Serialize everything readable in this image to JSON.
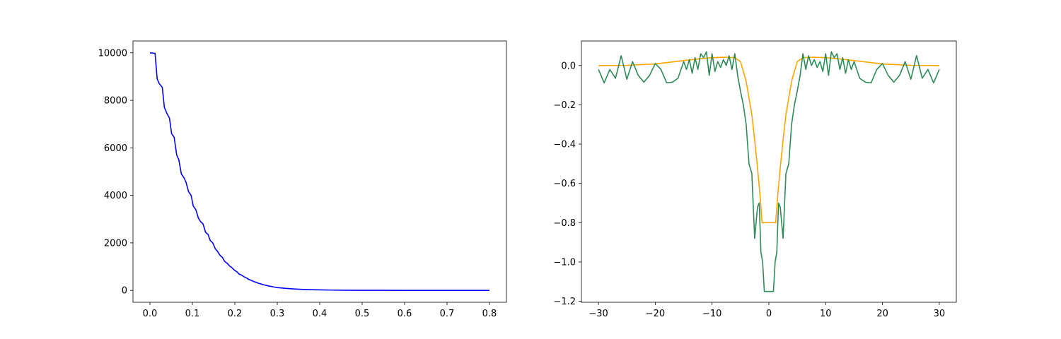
{
  "chart_data": [
    {
      "type": "line",
      "title": "",
      "xlabel": "",
      "ylabel": "",
      "xlim": [
        -0.04,
        0.84
      ],
      "ylim": [
        -500,
        10500
      ],
      "grid": false,
      "legend": "none",
      "x_ticks": [
        0.0,
        0.1,
        0.2,
        0.3,
        0.4,
        0.5,
        0.6,
        0.7,
        0.8
      ],
      "x_tick_labels": [
        "0.0",
        "0.1",
        "0.2",
        "0.3",
        "0.4",
        "0.5",
        "0.6",
        "0.7",
        "0.8"
      ],
      "y_ticks": [
        0,
        2000,
        4000,
        6000,
        8000,
        10000
      ],
      "y_tick_labels": [
        "0",
        "2000",
        "4000",
        "6000",
        "8000",
        "10000"
      ],
      "series": [
        {
          "color": "#0000ff",
          "x": [
            0.0,
            0.012,
            0.017,
            0.022,
            0.029,
            0.034,
            0.04,
            0.046,
            0.051,
            0.057,
            0.063,
            0.068,
            0.074,
            0.08,
            0.085,
            0.091,
            0.097,
            0.102,
            0.108,
            0.114,
            0.119,
            0.125,
            0.131,
            0.137,
            0.142,
            0.148,
            0.154,
            0.159,
            0.165,
            0.171,
            0.176,
            0.182,
            0.188,
            0.193,
            0.199,
            0.205,
            0.21,
            0.216,
            0.222,
            0.228,
            0.233,
            0.239,
            0.245,
            0.25,
            0.256,
            0.262,
            0.267,
            0.273,
            0.279,
            0.29,
            0.3,
            0.32,
            0.34,
            0.36,
            0.38,
            0.4,
            0.43,
            0.46,
            0.5,
            0.55,
            0.6,
            0.7,
            0.8
          ],
          "y": [
            10000,
            9980,
            8900,
            8700,
            8550,
            7700,
            7450,
            7250,
            6600,
            6450,
            5700,
            5500,
            4900,
            4750,
            4550,
            4150,
            4000,
            3550,
            3400,
            3050,
            2900,
            2800,
            2450,
            2350,
            2100,
            2000,
            1750,
            1650,
            1480,
            1380,
            1220,
            1140,
            1020,
            960,
            850,
            780,
            690,
            640,
            570,
            520,
            460,
            420,
            370,
            340,
            300,
            270,
            240,
            215,
            190,
            150,
            120,
            85,
            60,
            42,
            30,
            21,
            13,
            8,
            4,
            2,
            1,
            0.5,
            0.2
          ]
        }
      ]
    },
    {
      "type": "line",
      "title": "",
      "xlabel": "",
      "ylabel": "",
      "xlim": [
        -33,
        33
      ],
      "ylim": [
        -1.205,
        0.125
      ],
      "grid": false,
      "legend": "none",
      "x_ticks": [
        -30,
        -20,
        -10,
        0,
        10,
        20,
        30
      ],
      "x_tick_labels": [
        "−30",
        "−20",
        "−10",
        "0",
        "10",
        "20",
        "30"
      ],
      "y_ticks": [
        0.0,
        -0.2,
        -0.4,
        -0.6,
        -0.8,
        -1.0,
        -1.2
      ],
      "y_tick_labels": [
        "0.0",
        "−0.2",
        "−0.4",
        "−0.6",
        "−0.8",
        "−1.0",
        "−1.2"
      ],
      "series": [
        {
          "color": "#ffa500",
          "x": [
            -30,
            -25,
            -20,
            -15,
            -12,
            -10,
            -8,
            -6,
            -5,
            -4,
            -3,
            -2.5,
            -2,
            -1.5,
            -1.2,
            -1,
            1,
            1.2,
            1.5,
            2,
            2.5,
            3,
            4,
            5,
            6,
            8,
            10,
            12,
            15,
            20,
            25,
            30
          ],
          "y": [
            0.0,
            0.001,
            0.008,
            0.025,
            0.035,
            0.04,
            0.042,
            0.04,
            0.02,
            -0.08,
            -0.25,
            -0.38,
            -0.52,
            -0.68,
            -0.8,
            -0.8,
            -0.8,
            -0.8,
            -0.68,
            -0.52,
            -0.38,
            -0.25,
            -0.08,
            0.02,
            0.04,
            0.042,
            0.04,
            0.035,
            0.025,
            0.008,
            0.001,
            0.0
          ]
        },
        {
          "color": "#2e8b57",
          "x": [
            -30,
            -29,
            -28,
            -27,
            -26,
            -25,
            -24,
            -23,
            -22,
            -21,
            -20,
            -19,
            -18,
            -17,
            -16,
            -15,
            -14.5,
            -14,
            -13.5,
            -13,
            -12.5,
            -12,
            -11.5,
            -11,
            -10.5,
            -10,
            -9.5,
            -9,
            -8.5,
            -8,
            -7.5,
            -7,
            -6.5,
            -6,
            -5.5,
            -5,
            -4.5,
            -4,
            -3.5,
            -3,
            -2.5,
            -2,
            -1.7,
            -1.4,
            -1.1,
            -0.8,
            -0.6,
            0.6,
            0.8,
            1.1,
            1.4,
            1.7,
            2,
            2.5,
            3,
            3.5,
            4,
            4.5,
            5,
            5.5,
            6,
            6.5,
            7,
            7.5,
            8,
            8.5,
            9,
            9.5,
            10,
            10.5,
            11,
            11.5,
            12,
            12.5,
            13,
            13.5,
            14,
            14.5,
            15,
            16,
            17,
            18,
            19,
            20,
            21,
            22,
            23,
            24,
            25,
            26,
            27,
            28,
            29,
            30
          ],
          "y": [
            -0.02,
            -0.088,
            -0.02,
            -0.065,
            0.05,
            -0.07,
            0.02,
            -0.05,
            -0.085,
            -0.05,
            0.01,
            -0.02,
            -0.088,
            -0.085,
            -0.065,
            0.02,
            -0.02,
            0.03,
            -0.04,
            0.04,
            -0.02,
            0.06,
            0.04,
            0.07,
            -0.05,
            0.06,
            -0.03,
            0.02,
            -0.01,
            0.03,
            0.0,
            0.05,
            -0.02,
            0.06,
            -0.05,
            -0.13,
            -0.2,
            -0.3,
            -0.5,
            -0.55,
            -0.88,
            -0.72,
            -0.7,
            -0.95,
            -1.0,
            -1.15,
            -1.15,
            -1.15,
            -1.15,
            -1.0,
            -0.95,
            -0.7,
            -0.72,
            -0.88,
            -0.55,
            -0.5,
            -0.3,
            -0.2,
            -0.13,
            -0.05,
            0.06,
            -0.02,
            0.05,
            0.0,
            0.03,
            -0.01,
            0.02,
            -0.03,
            0.06,
            -0.05,
            0.07,
            0.04,
            0.06,
            -0.02,
            0.04,
            -0.04,
            0.03,
            -0.02,
            0.02,
            -0.065,
            -0.085,
            -0.088,
            -0.02,
            0.01,
            -0.05,
            -0.085,
            -0.05,
            0.02,
            -0.07,
            0.05,
            -0.065,
            -0.02,
            -0.088,
            -0.02
          ]
        }
      ]
    }
  ]
}
